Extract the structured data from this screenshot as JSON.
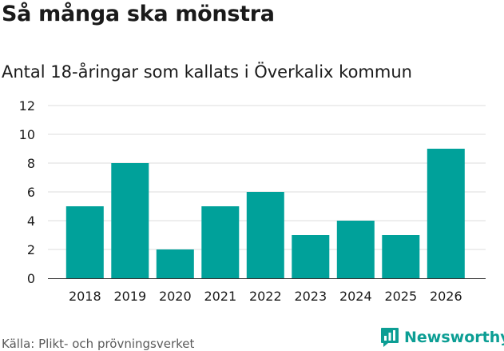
{
  "chart_data": {
    "type": "bar",
    "title": "Så många ska mönstra",
    "subtitle": "Antal 18-åringar som kallats i Överkalix kommun",
    "categories": [
      "2018",
      "2019",
      "2020",
      "2021",
      "2022",
      "2023",
      "2024",
      "2025",
      "2026"
    ],
    "values": [
      5,
      8,
      2,
      5,
      6,
      3,
      4,
      3,
      9
    ],
    "xlabel": "",
    "ylabel": "",
    "ylim": [
      0,
      12
    ],
    "yticks": [
      0,
      2,
      4,
      6,
      8,
      10,
      12
    ],
    "grid": true,
    "bar_color": "#00a19a",
    "grid_color": "#dddddd",
    "source": "Källa: Plikt- och prövningsverket"
  },
  "brand": {
    "name": "Newsworthy",
    "color": "#0c9e94"
  }
}
